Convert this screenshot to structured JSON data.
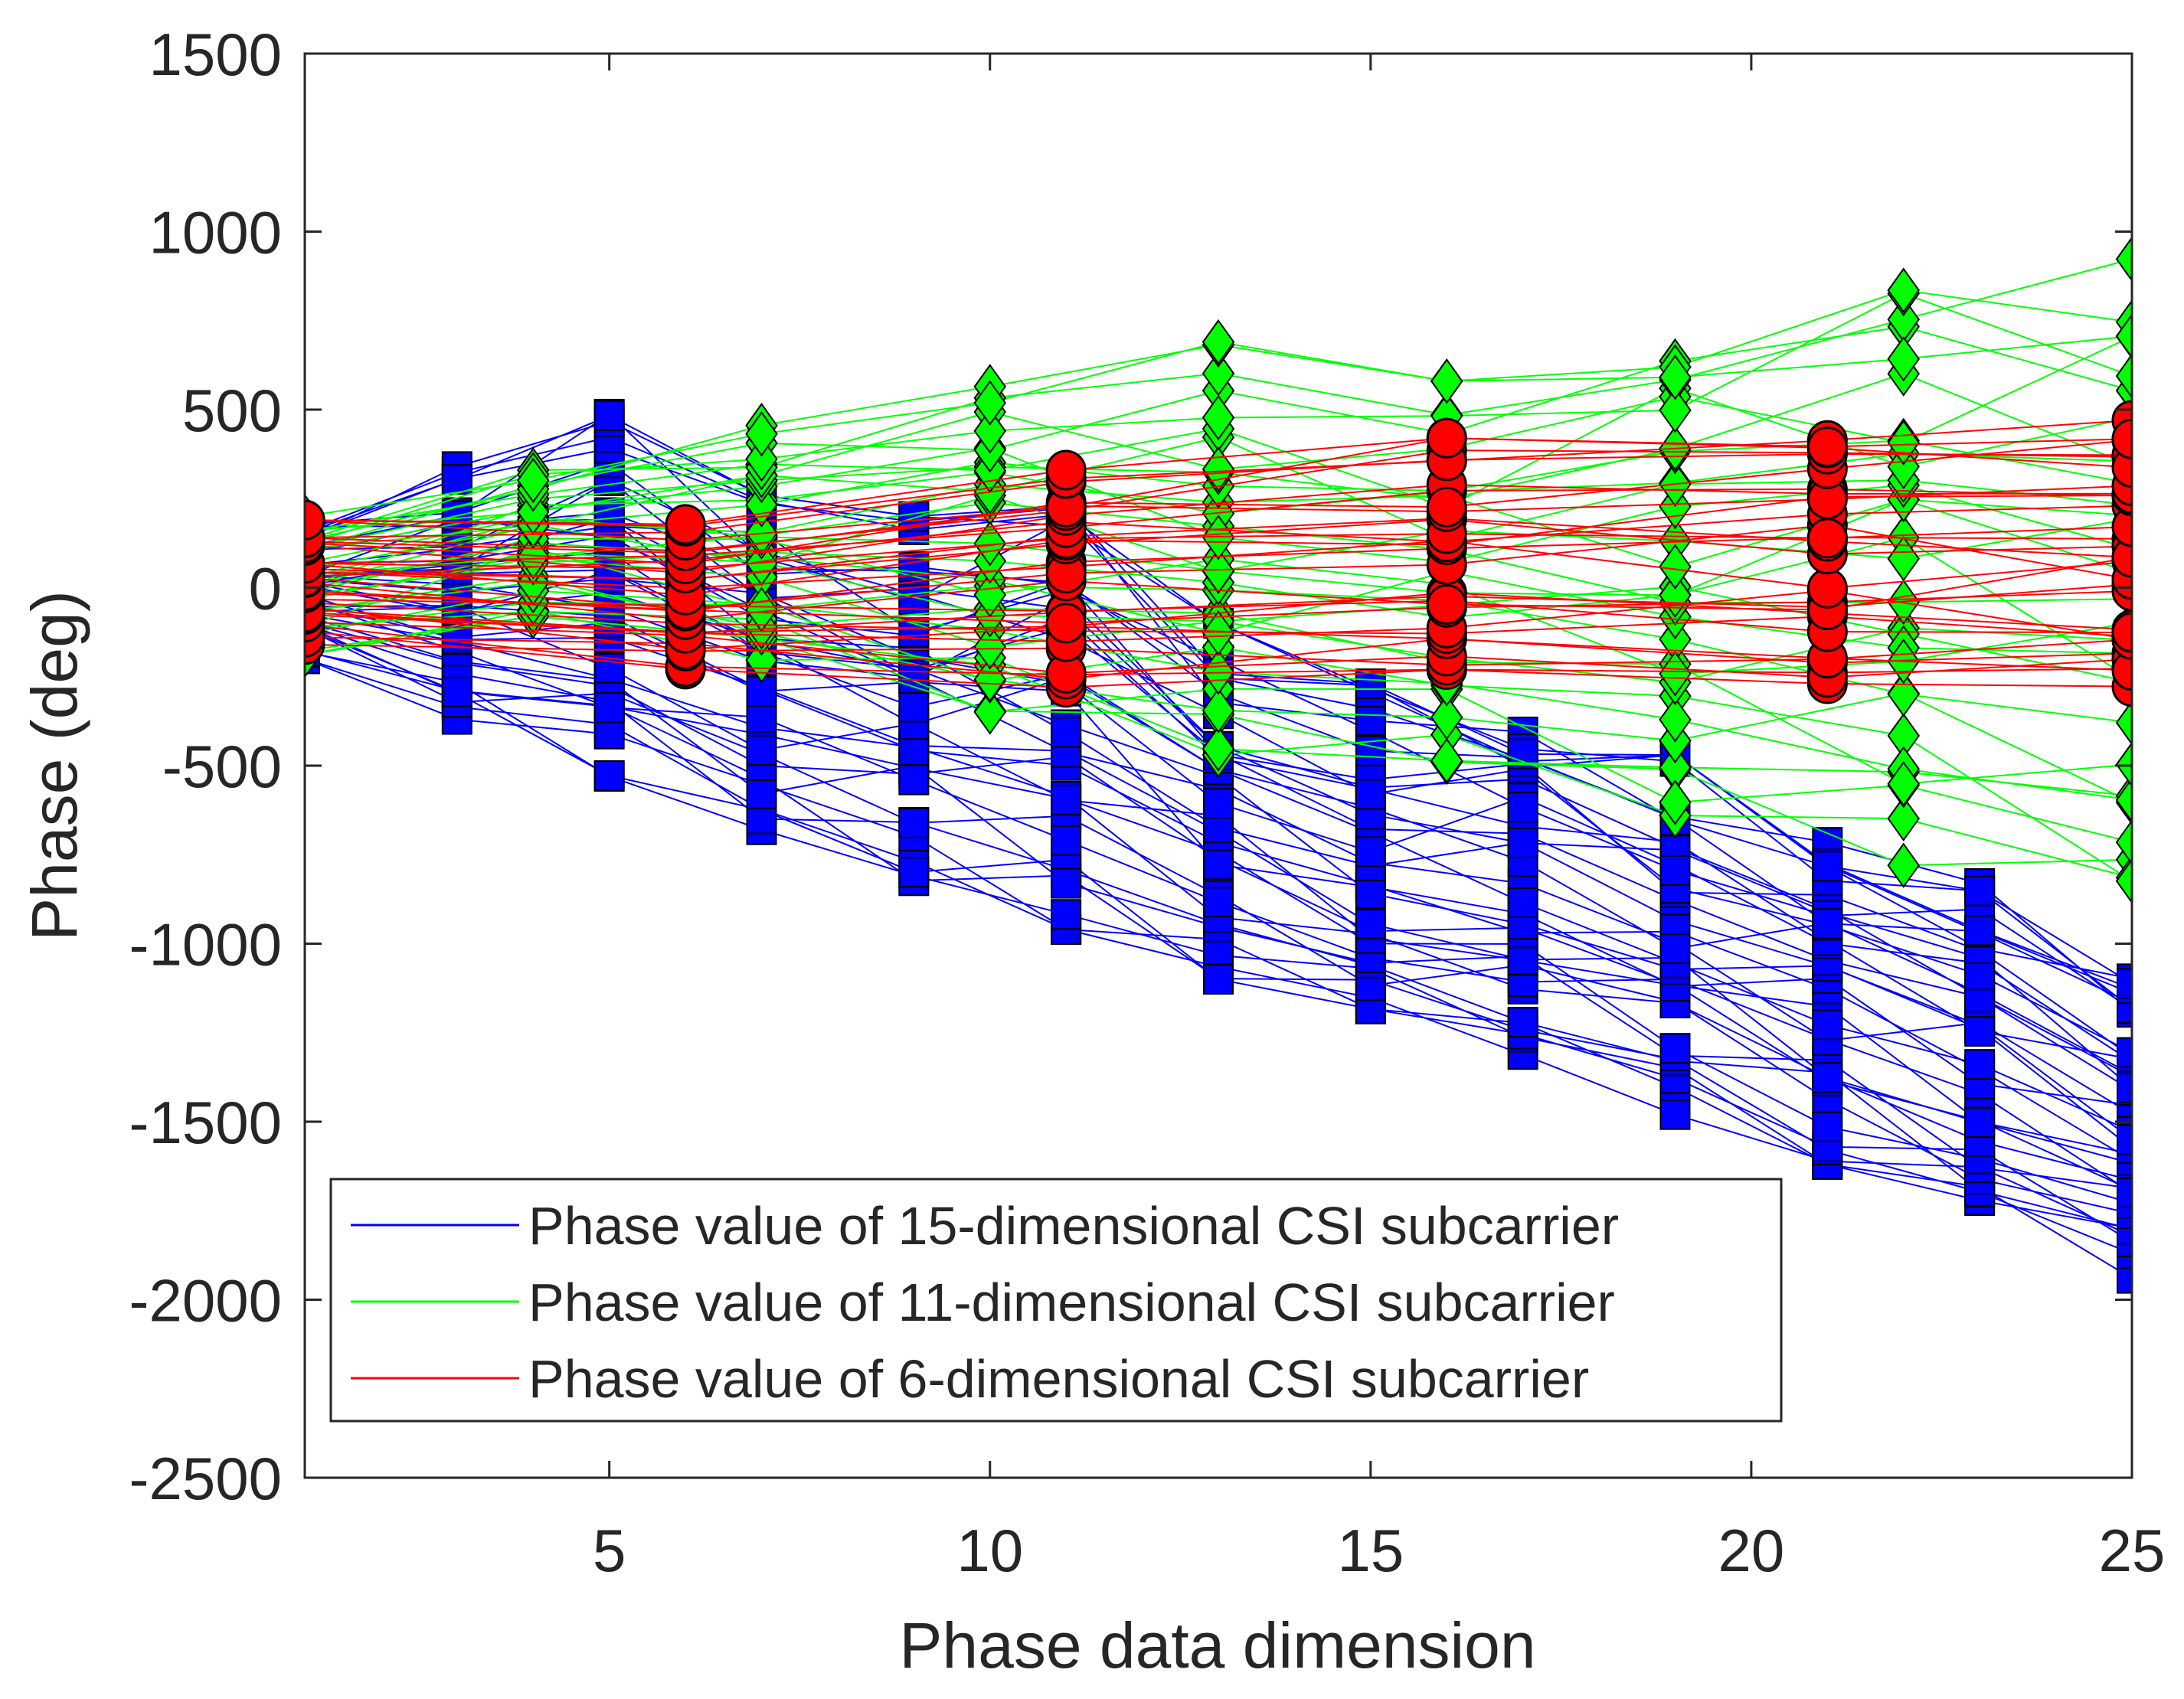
{
  "chart_data": {
    "type": "line",
    "title": "",
    "xlabel": "Phase data dimension",
    "ylabel": "Phase (deg)",
    "xlim": [
      1,
      25
    ],
    "ylim": [
      -2500,
      1500
    ],
    "x_ticks": [
      5,
      10,
      15,
      20,
      25
    ],
    "y_ticks": [
      1500,
      1000,
      500,
      0,
      -500,
      -1000,
      -1500,
      -2000,
      -2500
    ],
    "grid": false,
    "legend_position": "bottom-left",
    "series": [
      {
        "name": "Phase value of 15-dimensional CSI subcarrier",
        "color": "#0000ff",
        "marker": "square",
        "x": [
          1,
          3,
          5,
          7,
          9,
          11,
          13,
          15,
          17,
          19,
          21,
          23,
          25
        ],
        "y_range_per_x": [
          [
            -200,
            200
          ],
          [
            -370,
            340
          ],
          [
            -530,
            510
          ],
          [
            -680,
            260
          ],
          [
            -830,
            200
          ],
          [
            -960,
            240
          ],
          [
            -1100,
            -100
          ],
          [
            -1250,
            -270
          ],
          [
            -1320,
            -330
          ],
          [
            -1480,
            -470
          ],
          [
            -1620,
            -650
          ],
          [
            -1770,
            -800
          ],
          [
            -1940,
            -1060
          ]
        ],
        "num_lines": 36
      },
      {
        "name": "Phase value of 11-dimensional CSI subcarrier",
        "color": "#00ff00",
        "marker": "diamond",
        "x": [
          1,
          4,
          7,
          10,
          13,
          16,
          19,
          22,
          25
        ],
        "y_range_per_x": [
          [
            -190,
            200
          ],
          [
            -80,
            350
          ],
          [
            -230,
            490
          ],
          [
            -370,
            650
          ],
          [
            -470,
            690
          ],
          [
            -490,
            580
          ],
          [
            -640,
            710
          ],
          [
            -780,
            870
          ],
          [
            -900,
            990
          ]
        ],
        "num_lines": 30
      },
      {
        "name": "Phase value of 6-dimensional CSI subcarrier",
        "color": "#ff0000",
        "marker": "circle",
        "x": [
          1,
          6,
          11,
          16,
          21,
          25
        ],
        "y_range_per_x": [
          [
            -160,
            190
          ],
          [
            -230,
            190
          ],
          [
            -280,
            330
          ],
          [
            -230,
            420
          ],
          [
            -270,
            450
          ],
          [
            -300,
            470
          ]
        ],
        "num_lines": 30
      }
    ]
  }
}
